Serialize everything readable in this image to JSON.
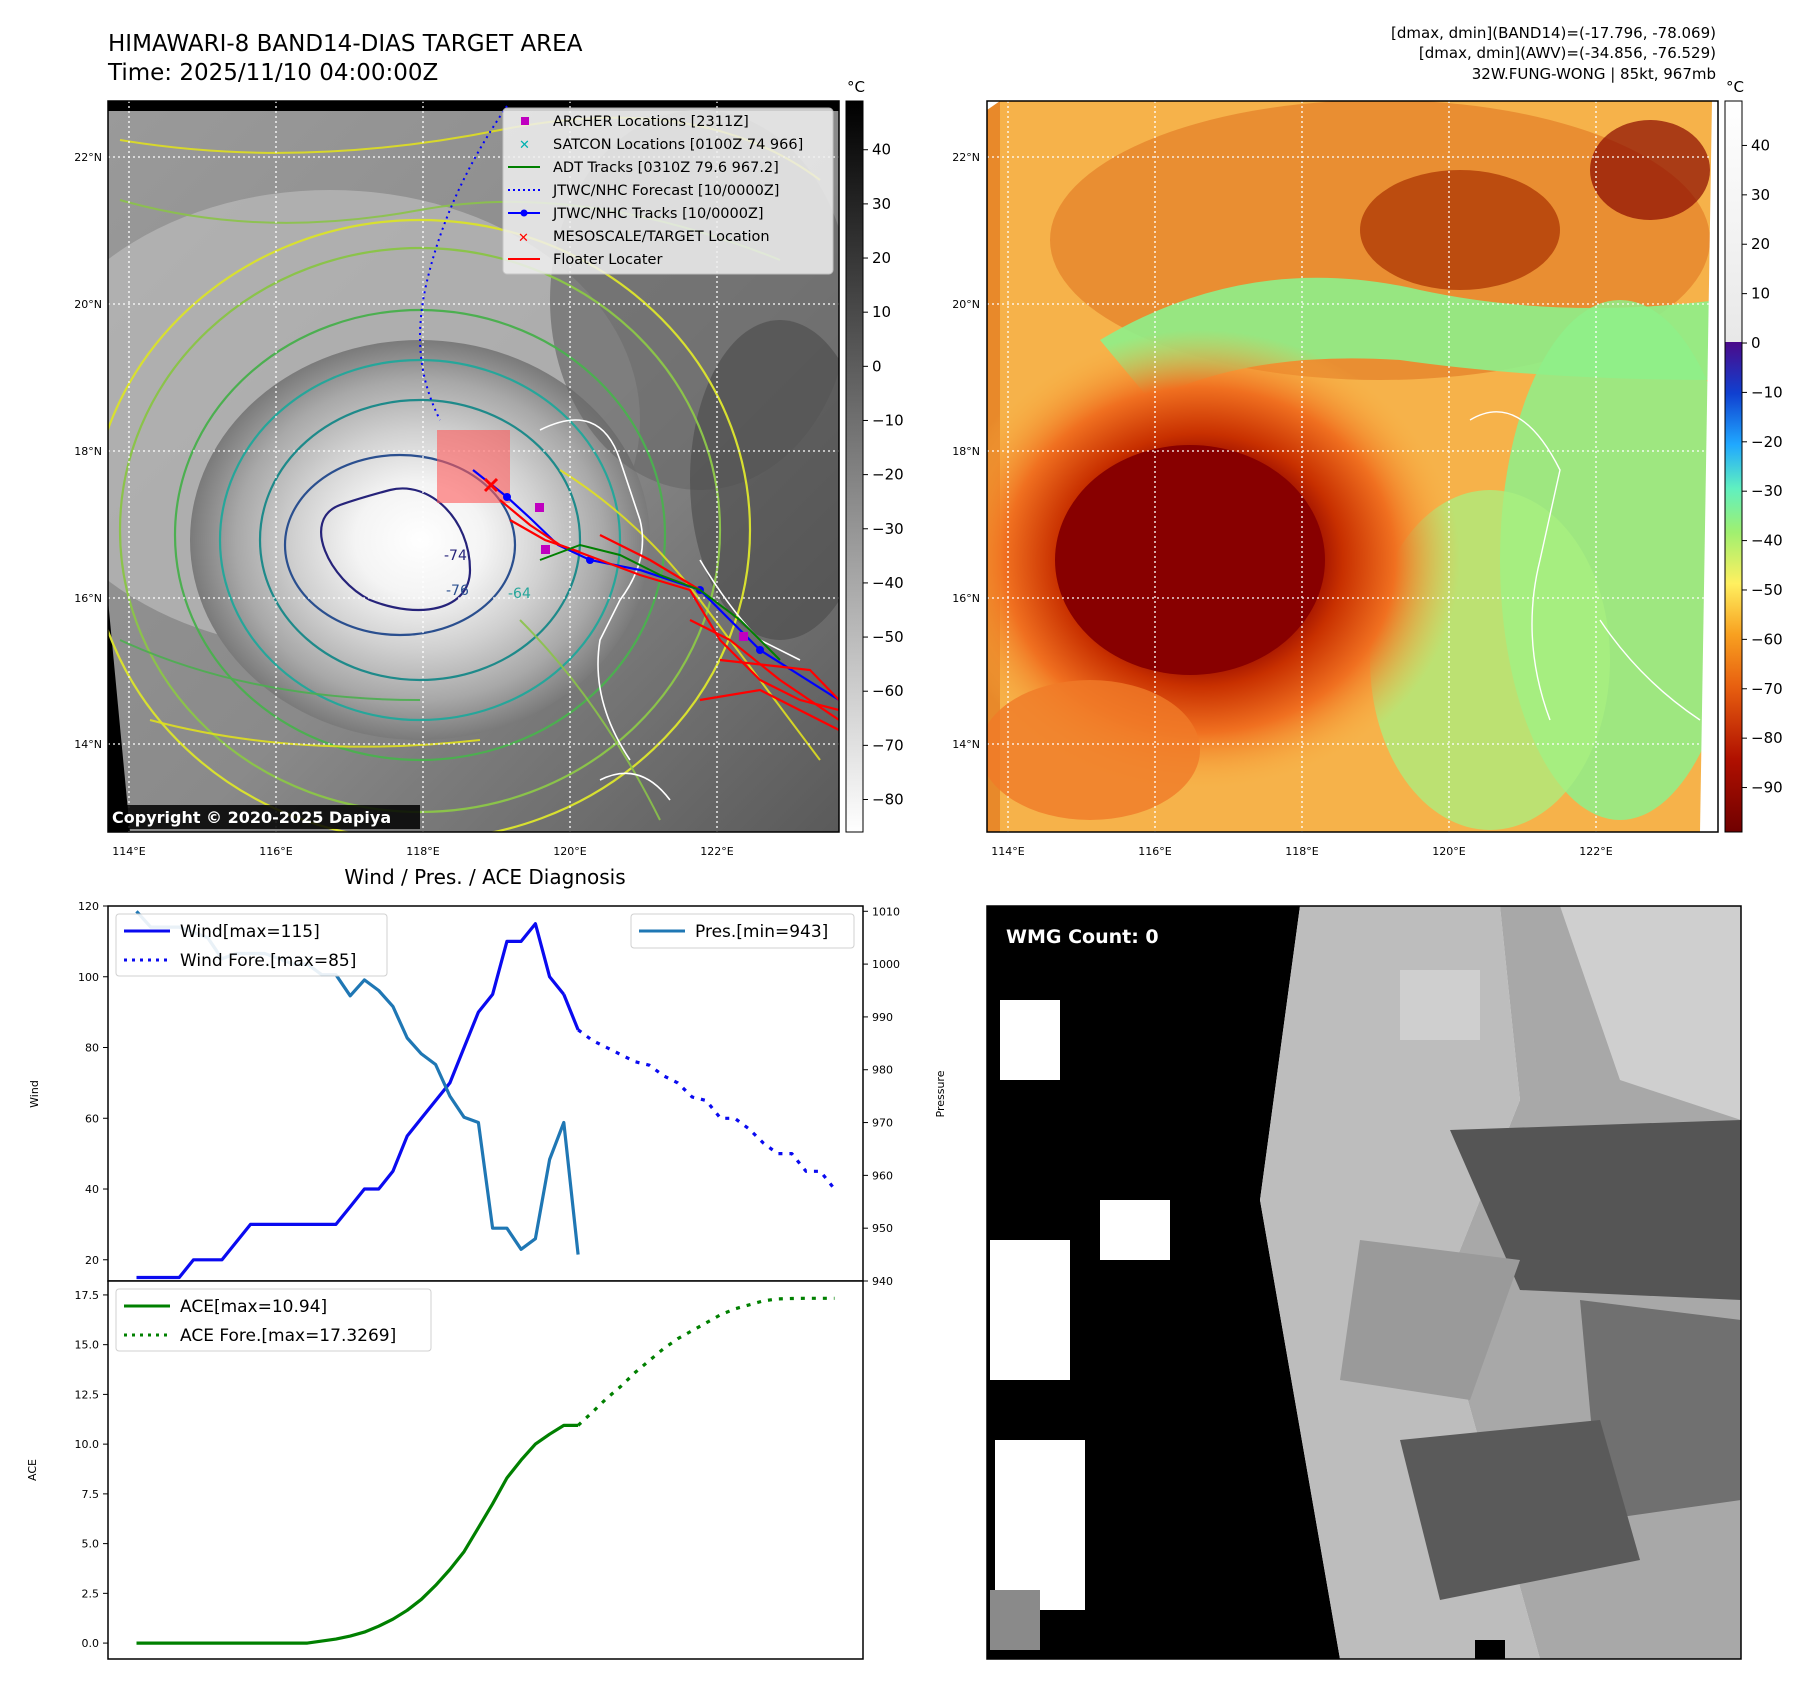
{
  "title_main": "HIMAWARI-8 BAND14-DIAS TARGET AREA",
  "title_time": "Time: 2025/11/10 04:00:00Z",
  "info_lines": [
    "[dmax, dmin](BAND14)=(-17.796, -78.069)",
    "[dmax, dmin](AWV)=(-34.856, -76.529)",
    "32W.FUNG-WONG | 85kt, 967mb"
  ],
  "copyright": "Copyright © 2020-2025 Dapiya",
  "map": {
    "lat_labels": [
      "22°N",
      "20°N",
      "18°N",
      "16°N",
      "14°N"
    ],
    "lon_labels": [
      "114°E",
      "116°E",
      "118°E",
      "120°E",
      "122°E"
    ],
    "legend": [
      "ARCHER Locations [2311Z]",
      "SATCON Locations [0100Z 74 966]",
      "ADT Tracks [0310Z 79.6 967.2]",
      "JTWC/NHC Forecast [10/0000Z]",
      "JTWC/NHC Tracks [10/0000Z]",
      "MESOSCALE/TARGET Location",
      "Floater Locater"
    ],
    "contour_labels": [
      "-74",
      "-76",
      "-64"
    ],
    "ir_colorbar": {
      "unit": "°C",
      "ticks": [
        40,
        30,
        20,
        10,
        0,
        -10,
        -20,
        -30,
        -40,
        -50,
        -60,
        -70,
        -80
      ],
      "min": -86,
      "max": 49
    },
    "wv_colorbar": {
      "unit": "°C",
      "ticks": [
        40,
        30,
        20,
        10,
        0,
        -10,
        -20,
        -30,
        -40,
        -50,
        -60,
        -70,
        -80,
        -90
      ],
      "min": -99,
      "max": 49
    }
  },
  "wmg_label": "WMG Count: 0",
  "colors": {
    "wind": "#0a0af0",
    "pressure": "#1f77b4",
    "ace": "#008000",
    "track_red": "#ff0000",
    "archer": "#c000c0",
    "satcon": "#00b0b0"
  },
  "chart_data": [
    {
      "type": "line",
      "title": "Wind / Pres. / ACE Diagnosis",
      "ylabel": "Wind",
      "ylabel_right": "Pressure",
      "ylim": [
        14,
        120
      ],
      "ylim_right": [
        940,
        1011
      ],
      "xlim": [
        -2,
        51
      ],
      "yticks": [
        20,
        40,
        60,
        80,
        100,
        120
      ],
      "yticks_right": [
        940,
        950,
        960,
        970,
        980,
        990,
        1000,
        1010
      ],
      "series": [
        {
          "name": "Wind[max=115]",
          "style": "solid",
          "x": [
            0,
            1,
            2,
            3,
            4,
            5,
            6,
            7,
            8,
            9,
            10,
            11,
            12,
            13,
            14,
            15,
            16,
            17,
            18,
            19,
            20,
            21,
            22,
            23,
            24,
            25,
            26,
            27,
            28,
            29,
            30
          ],
          "values": [
            15,
            15,
            15,
            15,
            20,
            20,
            20,
            25,
            30,
            30,
            30,
            30,
            30,
            30,
            30,
            35,
            40,
            40,
            45,
            55,
            60,
            65,
            70,
            80,
            90,
            95,
            110,
            110,
            115,
            100,
            95
          ]
        },
        {
          "name": "Wind[max=115]_tail",
          "style": "solid",
          "x": [
            30,
            31
          ],
          "values": [
            95,
            85
          ]
        },
        {
          "name": "Wind Fore.[max=85]",
          "style": "dotted",
          "x": [
            31,
            32,
            33,
            34,
            35,
            36,
            37,
            38,
            39,
            40,
            41,
            42,
            43,
            44,
            45,
            46,
            47,
            48,
            49
          ],
          "values": [
            85,
            82,
            80,
            78,
            76,
            75,
            72,
            70,
            66,
            65,
            60,
            60,
            57,
            53,
            50,
            50,
            45,
            45,
            40
          ]
        },
        {
          "name": "Pres.[min=943]",
          "style": "solid",
          "axis": "right",
          "x": [
            0,
            1,
            2,
            3,
            4,
            5,
            6,
            7,
            8,
            9,
            10,
            11,
            12,
            13,
            14,
            15,
            16,
            17,
            18,
            19,
            20,
            21,
            22,
            23,
            24,
            25,
            26,
            27,
            28,
            29,
            30,
            31
          ],
          "values": [
            1010,
            1007,
            1007,
            1007,
            1006,
            1005,
            1001,
            1002,
            1002,
            1002,
            1001,
            1000,
            1000,
            998,
            998,
            994,
            997,
            995,
            992,
            986,
            983,
            981,
            975,
            971,
            970,
            950,
            950,
            946,
            948,
            963,
            970,
            945
          ]
        }
      ]
    },
    {
      "type": "line",
      "ylabel": "ACE",
      "ylim": [
        -0.8,
        18.2
      ],
      "xlim": [
        -2,
        51
      ],
      "yticks": [
        0.0,
        2.5,
        5.0,
        7.5,
        10.0,
        12.5,
        15.0,
        17.5
      ],
      "series": [
        {
          "name": "ACE[max=10.94]",
          "style": "solid",
          "x": [
            0,
            1,
            2,
            3,
            4,
            5,
            6,
            7,
            8,
            9,
            10,
            11,
            12,
            13,
            14,
            15,
            16,
            17,
            18,
            19,
            20,
            21,
            22,
            23,
            24,
            25,
            26,
            27,
            28,
            29,
            30,
            31
          ],
          "values": [
            0,
            0,
            0,
            0,
            0,
            0,
            0,
            0,
            0,
            0,
            0,
            0,
            0,
            0.1,
            0.2,
            0.35,
            0.55,
            0.85,
            1.2,
            1.65,
            2.2,
            2.9,
            3.7,
            4.6,
            5.8,
            7.0,
            8.3,
            9.2,
            10.0,
            10.5,
            10.94,
            10.94
          ]
        },
        {
          "name": "ACE Fore.[max=17.3269]",
          "style": "dotted",
          "x": [
            31,
            32,
            33,
            34,
            35,
            36,
            37,
            38,
            39,
            40,
            41,
            42,
            43,
            44,
            45,
            46,
            47,
            48,
            49
          ],
          "values": [
            10.94,
            11.6,
            12.3,
            12.9,
            13.6,
            14.2,
            14.8,
            15.3,
            15.7,
            16.1,
            16.5,
            16.8,
            17.0,
            17.2,
            17.3,
            17.32,
            17.33,
            17.33,
            17.33
          ]
        }
      ]
    }
  ]
}
